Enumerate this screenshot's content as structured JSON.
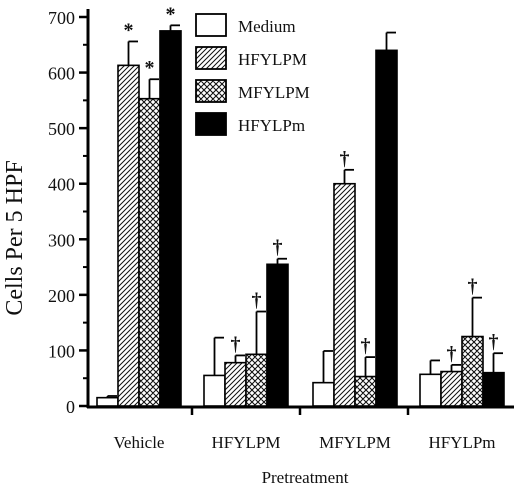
{
  "chart_data": {
    "type": "bar",
    "title": "",
    "xlabel": "Pretreatment",
    "ylabel": "Cells Per 5 HPF",
    "ylim": [
      0,
      700
    ],
    "yticks": [
      "0",
      "100",
      "200",
      "300",
      "400",
      "500",
      "600",
      "700"
    ],
    "categories": [
      "Vehicle",
      "HFYLPM",
      "MFYLPM",
      "HFYLPm"
    ],
    "legend_position": "top-center",
    "series": [
      {
        "name": "Medium",
        "fill": "white",
        "values": [
          15,
          55,
          42,
          57
        ],
        "errors": [
          3,
          68,
          57,
          25
        ],
        "marks": [
          "",
          "",
          "",
          ""
        ]
      },
      {
        "name": "HFYLPM",
        "fill": "diagonal",
        "values": [
          613,
          78,
          400,
          62
        ],
        "errors": [
          43,
          13,
          25,
          12
        ],
        "marks": [
          "*",
          "†",
          "†",
          "†"
        ]
      },
      {
        "name": "MFYLPM",
        "fill": "crosshatch",
        "values": [
          553,
          93,
          53,
          125
        ],
        "errors": [
          35,
          77,
          35,
          70
        ],
        "marks": [
          "*",
          "†",
          "†",
          "†"
        ]
      },
      {
        "name": "HFYLPm",
        "fill": "black",
        "values": [
          675,
          255,
          640,
          60
        ],
        "errors": [
          10,
          10,
          32,
          35
        ],
        "marks": [
          "*",
          "†",
          "",
          "†"
        ]
      }
    ]
  }
}
